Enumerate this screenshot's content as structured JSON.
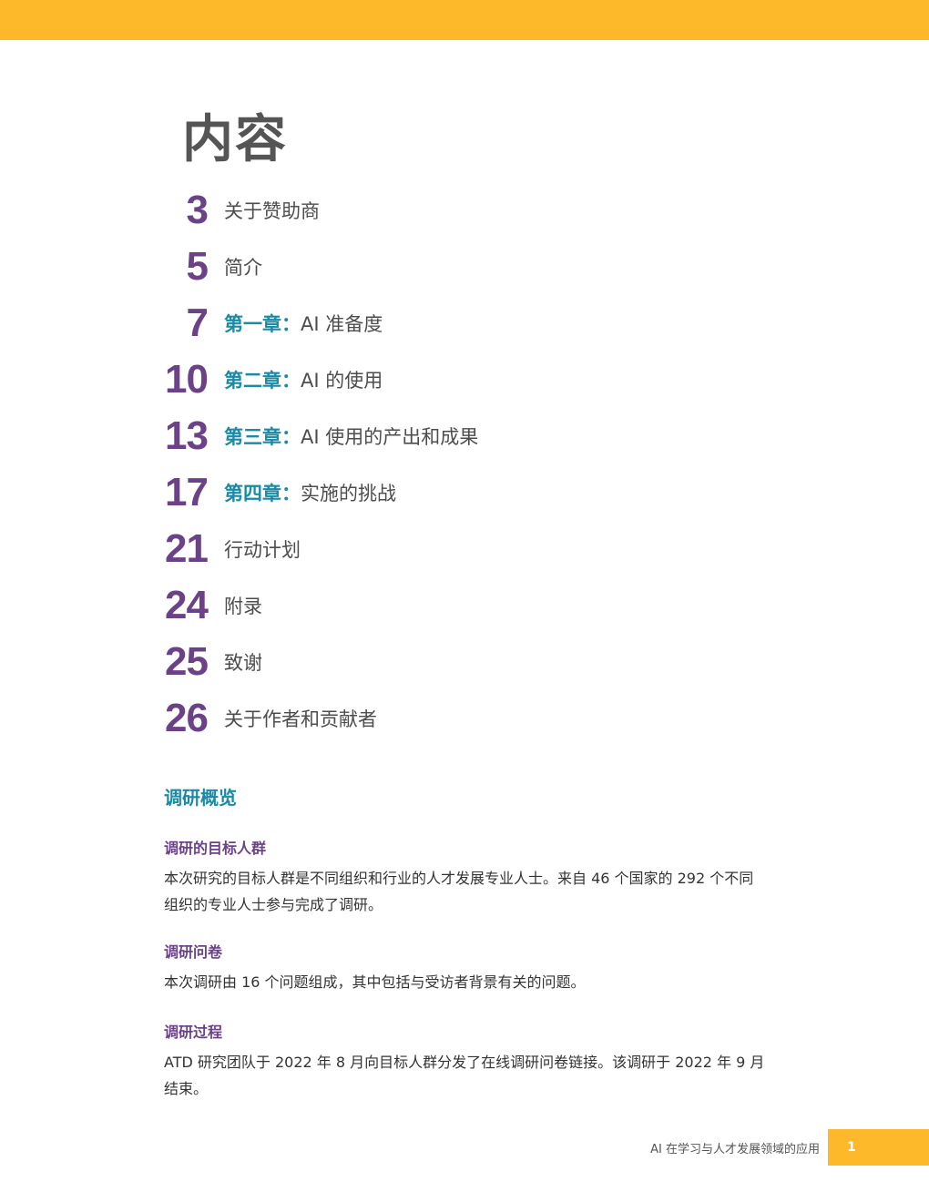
{
  "colors": {
    "accent_yellow": "#fdb92a",
    "toc_number_purple": "#6b4287",
    "chapter_teal": "#1a8aa6",
    "heading_gray": "#555555"
  },
  "page_title": "内容",
  "toc": [
    {
      "num": "3",
      "chapter": "",
      "label": "关于赞助商"
    },
    {
      "num": "5",
      "chapter": "",
      "label": "简介"
    },
    {
      "num": "7",
      "chapter": "第一章：",
      "label": "AI 准备度"
    },
    {
      "num": "10",
      "chapter": "第二章：",
      "label": "AI 的使用"
    },
    {
      "num": "13",
      "chapter": "第三章：",
      "label": "AI 使用的产出和成果"
    },
    {
      "num": "17",
      "chapter": "第四章：",
      "label": "实施的挑战"
    },
    {
      "num": "21",
      "chapter": "",
      "label": "行动计划"
    },
    {
      "num": "24",
      "chapter": "",
      "label": "附录"
    },
    {
      "num": "25",
      "chapter": "",
      "label": "致谢"
    },
    {
      "num": "26",
      "chapter": "",
      "label": "关于作者和贡献者"
    }
  ],
  "overview": {
    "heading": "调研概览",
    "sections": [
      {
        "title": "调研的目标人群",
        "body": "本次研究的目标人群是不同组织和行业的人才发展专业人士。来自 46 个国家的 292 个不同组织的专业人士参与完成了调研。"
      },
      {
        "title": "调研问卷",
        "body": "本次调研由 16 个问题组成，其中包括与受访者背景有关的问题。"
      },
      {
        "title": "调研过程",
        "body": "ATD 研究团队于 2022 年 8 月向目标人群分发了在线调研问卷链接。该调研于 2022 年 9 月结束。"
      }
    ]
  },
  "footer": {
    "title": "AI 在学习与人才发展领域的应用",
    "page_number": "1"
  }
}
